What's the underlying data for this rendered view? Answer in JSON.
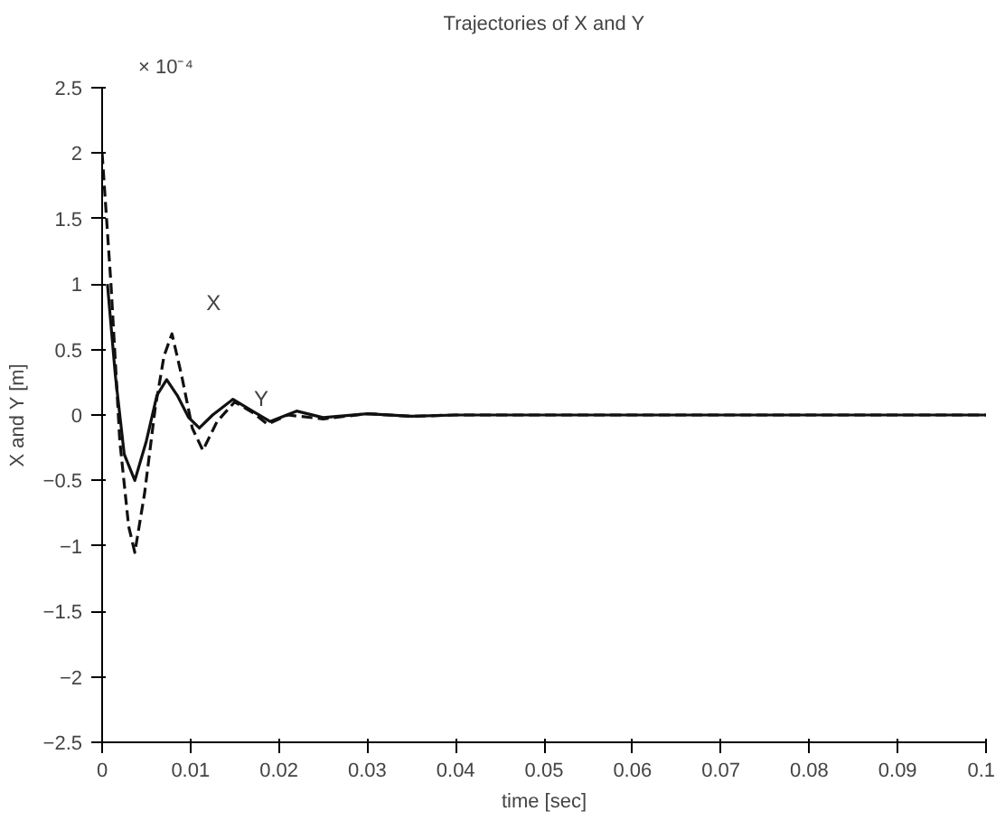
{
  "chart_data": {
    "type": "line",
    "title": "Trajectories of X and Y",
    "xlabel": "time [sec]",
    "ylabel": "X and Y [m]",
    "xlim": [
      0,
      0.1
    ],
    "xticks": [
      0,
      0.01,
      0.02,
      0.03,
      0.04,
      0.05,
      0.06,
      0.07,
      0.08,
      0.09,
      0.1
    ],
    "ylim": [
      -2.5,
      2.5
    ],
    "yticks": [
      -2.5,
      -2,
      -1.5,
      -1,
      -0.5,
      0,
      0.5,
      1,
      1.5,
      2,
      2.5
    ],
    "grid": false,
    "marker": "none",
    "annotations": [
      "× 10⁻⁴",
      "X",
      "Y"
    ],
    "series": [
      {
        "color": "#111111",
        "line_style": "solid",
        "x": [
          0.0006,
          0.0015,
          0.0025,
          0.0037,
          0.005,
          0.0062,
          0.0073,
          0.0085,
          0.0098,
          0.011,
          0.0125,
          0.0148,
          0.017,
          0.019,
          0.022,
          0.025,
          0.03,
          0.035,
          0.04,
          0.047,
          0.06,
          0.08,
          0.1
        ],
        "values": [
          1.0,
          0.3,
          -0.3,
          -0.5,
          -0.2,
          0.15,
          0.27,
          0.15,
          -0.02,
          -0.1,
          0.0,
          0.12,
          0.03,
          -0.05,
          0.03,
          -0.02,
          0.01,
          -0.01,
          0.0,
          0.0,
          0,
          0,
          0
        ]
      },
      {
        "color": "#111111",
        "line_style": "dashed",
        "x": [
          0,
          0.001,
          0.002,
          0.003,
          0.0037,
          0.0048,
          0.006,
          0.007,
          0.0079,
          0.009,
          0.0102,
          0.0114,
          0.013,
          0.015,
          0.017,
          0.0187,
          0.021,
          0.025,
          0.03,
          0.035,
          0.04,
          0.047,
          0.06,
          0.08,
          0.1
        ],
        "values": [
          2.0,
          1.0,
          -0.2,
          -0.85,
          -1.05,
          -0.6,
          0.05,
          0.45,
          0.62,
          0.3,
          -0.1,
          -0.27,
          -0.05,
          0.1,
          0.02,
          -0.07,
          0.0,
          -0.03,
          0.01,
          -0.01,
          0.0,
          0.0,
          0,
          0,
          0
        ]
      }
    ]
  }
}
